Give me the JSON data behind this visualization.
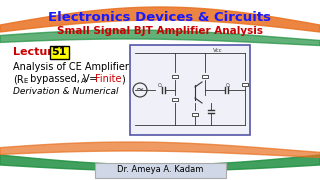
{
  "title": "Electronics Devices & Circuits",
  "subtitle": "Small Signal BJT Amplifier Analysis",
  "lecture_label": "Lecture",
  "lecture_num": "51",
  "line1": "Analysis of CE Amplifier",
  "line2_part1": "(R",
  "line2_E": "E",
  "line2_part2": " bypassed, V",
  "line2_A": "A",
  "line2_part3": " = ",
  "line2_finite": "Finite",
  "line3": "Derivation & Numerical",
  "author": "Dr. Ameya A. Kadam",
  "bg_color": "#ffffff",
  "title_color": "#1a1aff",
  "subtitle_color": "#cc0000",
  "lecture_color": "#cc0000",
  "num_box_color": "#ffff00",
  "num_box_edge": "#000000",
  "text_color": "#000000",
  "finite_color": "#cc0000",
  "author_box_color": "#d0d8e8",
  "author_text_color": "#000000",
  "stripe_orange": "#e87020",
  "stripe_green": "#209040"
}
